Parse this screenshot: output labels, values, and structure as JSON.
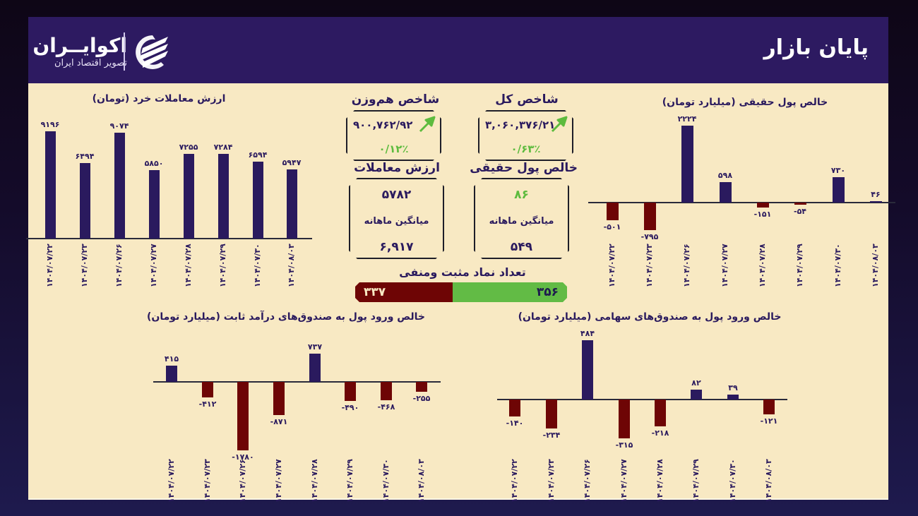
{
  "header": {
    "title": "پایان بازار",
    "logo_name": "اکوایــران",
    "logo_tagline": "تصویر اقتصاد ایران"
  },
  "colors": {
    "header_bg": "#2d1a61",
    "panel_bg": "#f8e9c3",
    "positive_bar": "#2a1a5e",
    "negative_bar": "#6e0505",
    "green": "#5dbb3e",
    "positive_count_bg": "#62bb45"
  },
  "dates": [
    "۱۴۰۴/۰۷/۲۲",
    "۱۴۰۴/۰۷/۲۳",
    "۱۴۰۴/۰۷/۲۶",
    "۱۴۰۴/۰۷/۲۷",
    "۱۴۰۴/۰۷/۲۸",
    "۱۴۰۴/۰۷/۲۹",
    "۱۴۰۴/۰۷/۳۰",
    "۱۴۰۴/۰۸/۰۳"
  ],
  "cards": {
    "total_index": {
      "title": "شاخص کل",
      "value": "۳,۰۶۰,۳۷۶/۲۱",
      "change": "۰/۶۳٪",
      "trend_icon": "arrow-up-right-icon"
    },
    "equal_weight_index": {
      "title": "شاخص هم‌وزن",
      "value": "۹۰۰,۷۶۲/۹۲",
      "change": "۰/۱۲٪",
      "trend_icon": "arrow-up-right-icon"
    },
    "real_money": {
      "title": "خالص پول حقیقی",
      "value": "۸۶",
      "avg_label": "میانگین ماهانه",
      "avg_value": "۵۴۹"
    },
    "trade_value": {
      "title": "ارزش معاملات",
      "value": "۵۷۸۲",
      "avg_label": "میانگین ماهانه",
      "avg_value": "۶,۹۱۷"
    }
  },
  "symbols_count": {
    "title": "تعداد نماد مثبت ومنفی",
    "positive": "۳۵۶",
    "negative": "۳۳۷"
  },
  "chart_data": [
    {
      "id": "retail",
      "type": "bar",
      "title": "ارزش معاملات خرد (تومان)",
      "categories": [
        "۱۴۰۴/۰۷/۲۲",
        "۱۴۰۴/۰۷/۲۳",
        "۱۴۰۴/۰۷/۲۶",
        "۱۴۰۴/۰۷/۲۷",
        "۱۴۰۴/۰۷/۲۸",
        "۱۴۰۴/۰۷/۲۹",
        "۱۴۰۴/۰۷/۳۰",
        "۱۴۰۴/۰۸/۰۳"
      ],
      "values": [
        9196,
        6494,
        9074,
        5850,
        7255,
        7284,
        6594,
        5947
      ],
      "labels": [
        "۹۱۹۶",
        "۶۴۹۴",
        "۹۰۷۴",
        "۵۸۵۰",
        "۷۲۵۵",
        "۷۲۸۴",
        "۶۵۹۴",
        "۵۹۴۷"
      ],
      "xlabel": "",
      "ylabel": "",
      "grid": false,
      "legend": "none"
    },
    {
      "id": "real_money",
      "type": "bar",
      "title": "خالص پول حقیقی (میلیارد تومان)",
      "categories": [
        "۱۴۰۴/۰۷/۲۲",
        "۱۴۰۴/۰۷/۲۳",
        "۱۴۰۴/۰۷/۲۶",
        "۱۴۰۴/۰۷/۲۷",
        "۱۴۰۴/۰۷/۲۸",
        "۱۴۰۴/۰۷/۲۹",
        "۱۴۰۴/۰۷/۳۰",
        "۱۴۰۴/۰۸/۰۳"
      ],
      "values": [
        -501,
        -795,
        2224,
        598,
        -151,
        -54,
        730,
        46
      ],
      "labels": [
        "-۵۰۱",
        "-۷۹۵",
        "۲۲۲۴",
        "۵۹۸",
        "-۱۵۱",
        "-۵۴",
        "۷۳۰",
        "۴۶"
      ],
      "xlabel": "",
      "ylabel": "",
      "grid": false,
      "legend": "none"
    },
    {
      "id": "fixed_income",
      "type": "bar",
      "title": "خالص ورود پول به صندوق‌های درآمد ثابت (میلیارد تومان)",
      "categories": [
        "۱۴۰۴/۰۷/۲۲",
        "۱۴۰۴/۰۷/۲۳",
        "۱۴۰۴/۰۷/۲۶",
        "۱۴۰۴/۰۷/۲۷",
        "۱۴۰۴/۰۷/۲۸",
        "۱۴۰۴/۰۷/۲۹",
        "۱۴۰۴/۰۷/۳۰",
        "۱۴۰۴/۰۸/۰۳"
      ],
      "values": [
        415,
        -412,
        -1780,
        -871,
        737,
        -490,
        -468,
        -255
      ],
      "labels": [
        "۴۱۵",
        "-۴۱۲",
        "-۱۷۸۰",
        "-۸۷۱",
        "۷۳۷",
        "-۴۹۰",
        "-۴۶۸",
        "-۲۵۵"
      ],
      "xlabel": "",
      "ylabel": "",
      "grid": false,
      "legend": "none"
    },
    {
      "id": "equity_funds",
      "type": "bar",
      "title": "خالص ورود پول به صندوق‌های سهامی (میلیارد تومان)",
      "categories": [
        "۱۴۰۴/۰۷/۲۲",
        "۱۴۰۴/۰۷/۲۳",
        "۱۴۰۴/۰۷/۲۶",
        "۱۴۰۴/۰۷/۲۷",
        "۱۴۰۴/۰۷/۲۸",
        "۱۴۰۴/۰۷/۲۹",
        "۱۴۰۴/۰۷/۳۰",
        "۱۴۰۴/۰۸/۰۳"
      ],
      "values": [
        -140,
        -234,
        484,
        -315,
        -218,
        82,
        39,
        -121
      ],
      "labels": [
        "-۱۴۰",
        "-۲۳۴",
        "۴۸۴",
        "-۳۱۵",
        "-۲۱۸",
        "۸۲",
        "۳۹",
        "-۱۲۱"
      ],
      "xlabel": "",
      "ylabel": "",
      "grid": false,
      "legend": "none"
    }
  ]
}
